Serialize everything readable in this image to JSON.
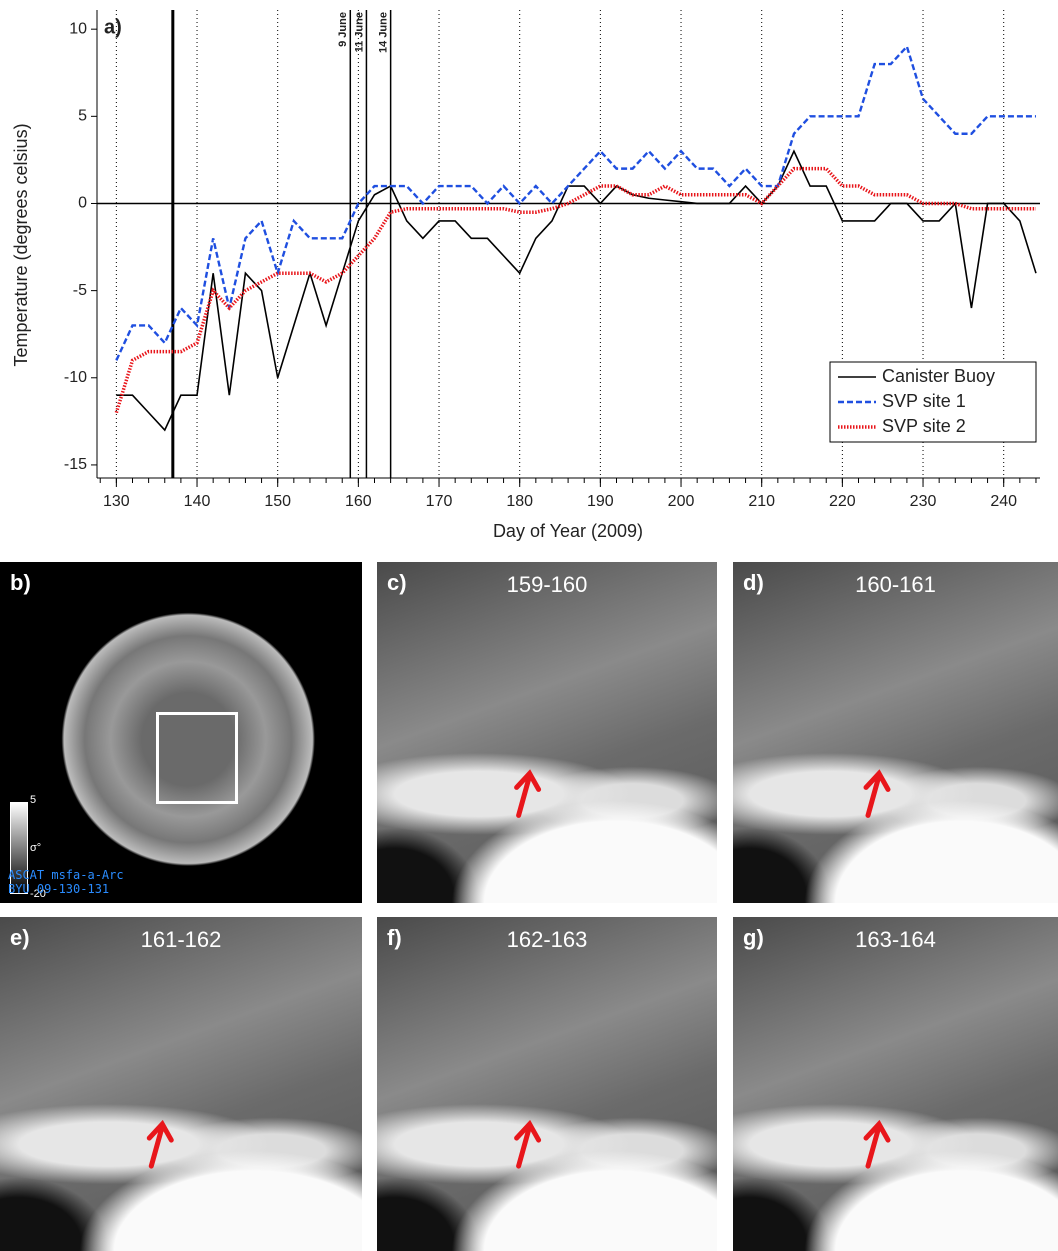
{
  "chart_data": {
    "type": "line",
    "panel_label": "a)",
    "xlabel": "Day of Year (2009)",
    "ylabel": "Temperature (degrees celsius)",
    "x": [
      130,
      132,
      134,
      136,
      138,
      140,
      142,
      144,
      146,
      148,
      150,
      152,
      154,
      156,
      158,
      160,
      162,
      164,
      166,
      168,
      170,
      172,
      174,
      176,
      178,
      180,
      182,
      184,
      186,
      188,
      190,
      192,
      194,
      196,
      198,
      200,
      202,
      204,
      206,
      208,
      210,
      212,
      214,
      216,
      218,
      220,
      222,
      224,
      226,
      228,
      230,
      232,
      234,
      236,
      238,
      240,
      242,
      244
    ],
    "series": [
      {
        "name": "Canister Buoy",
        "color": "#000000",
        "style": "solid",
        "values": [
          -11,
          -11,
          -12,
          -13,
          -11,
          -11,
          -4,
          -11,
          -4,
          -5,
          -10,
          -7,
          -4,
          -7,
          -4,
          -1,
          0.5,
          1,
          -1,
          -2,
          -1,
          -1,
          -2,
          -2,
          -3,
          -4,
          -2,
          -1,
          1,
          1,
          0,
          1,
          0.5,
          0.3,
          0.2,
          0.1,
          0,
          0,
          0,
          1,
          0,
          1,
          3,
          1,
          1,
          -1,
          -1,
          -1,
          0,
          0,
          -1,
          -1,
          0,
          -6,
          0,
          0,
          -1,
          -4
        ]
      },
      {
        "name": "SVP site 1",
        "color": "#1f4fe0",
        "style": "dashed",
        "values": [
          -9,
          -7,
          -7,
          -8,
          -6,
          -7,
          -2,
          -6,
          -2,
          -1,
          -4,
          -1,
          -2,
          -2,
          -2,
          0,
          1,
          1,
          1,
          0,
          1,
          1,
          1,
          0,
          1,
          0,
          1,
          0,
          1,
          2,
          3,
          2,
          2,
          3,
          2,
          3,
          2,
          2,
          1,
          2,
          1,
          1,
          4,
          5,
          5,
          5,
          5,
          8,
          8,
          9,
          6,
          5,
          4,
          4,
          5,
          5,
          5,
          5
        ]
      },
      {
        "name": "SVP site 2",
        "color": "#e8161b",
        "style": "dotted",
        "values": [
          -12,
          -9,
          -8.5,
          -8.5,
          -8.5,
          -8,
          -5,
          -6,
          -5,
          -4.5,
          -4,
          -4,
          -4,
          -4.5,
          -4,
          -3,
          -2,
          -0.5,
          -0.3,
          -0.3,
          -0.3,
          -0.3,
          -0.3,
          -0.3,
          -0.3,
          -0.5,
          -0.5,
          -0.3,
          0,
          0.5,
          1,
          1,
          0.5,
          0.5,
          1,
          0.5,
          0.5,
          0.5,
          0.5,
          0.5,
          0,
          1,
          2,
          2,
          2,
          1,
          1,
          0.5,
          0.5,
          0.5,
          0,
          0,
          0,
          -0.3,
          -0.3,
          -0.3,
          -0.3,
          -0.3
        ]
      }
    ],
    "events": [
      {
        "x": 137
      },
      {
        "x": 159,
        "label": "9 June"
      },
      {
        "x": 161,
        "label": "11 June"
      },
      {
        "x": 164,
        "label": "14 June"
      }
    ],
    "xlim": [
      127.6,
      244.5
    ],
    "ylim": [
      -15.75,
      11.1
    ],
    "xticks": [
      130,
      140,
      150,
      160,
      170,
      180,
      190,
      200,
      210,
      220,
      230,
      240
    ],
    "yticks": [
      -15,
      -10,
      -5,
      0,
      5,
      10
    ],
    "grid": true,
    "legend": "lower right"
  },
  "panels": [
    {
      "label": "b)"
    },
    {
      "label": "c)",
      "title": "159-160"
    },
    {
      "label": "d)",
      "title": "160-161"
    },
    {
      "label": "e)",
      "title": "161-162"
    },
    {
      "label": "f)",
      "title": "162-163"
    },
    {
      "label": "g)",
      "title": "163-164"
    }
  ],
  "colorbar": {
    "max": 5,
    "symbol": "σ°",
    "min": -20
  },
  "credit": [
    "ASCAT msfa-a-Arc",
    "BYU 09-130-131"
  ]
}
